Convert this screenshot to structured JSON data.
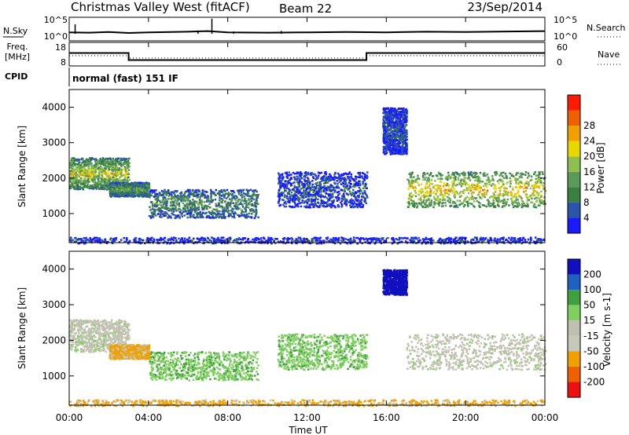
{
  "header": {
    "station": "Christmas Valley West (fitACF)",
    "beam": "Beam 22",
    "date": "23/Sep/2014"
  },
  "summary_panels": {
    "nsky_label": "N.Sky",
    "nsky_ticks": [
      "10^5",
      "10^0"
    ],
    "nsearch_label": "N.Search",
    "nsearch_ticks": [
      "10^5",
      "10^0"
    ],
    "freq_label": "Freq.",
    "freq_unit": "[MHz]",
    "freq_ticks": [
      "18",
      "8"
    ],
    "nave_label": "Nave",
    "nave_ticks": [
      "60",
      "0"
    ],
    "cpid_label": "CPID",
    "cpid_text": "normal (fast) 151 IF"
  },
  "x_axis": {
    "label": "Time UT",
    "ticks": [
      "00:00",
      "04:00",
      "08:00",
      "12:00",
      "16:00",
      "20:00",
      "00:00"
    ]
  },
  "colors": {
    "power": [
      "#1a1aff",
      "#2a55aa",
      "#3a8040",
      "#5a9a5a",
      "#8ec050",
      "#e8d800",
      "#f0a000",
      "#f06000",
      "#ff1a00"
    ],
    "velocity": [
      "#ee1010",
      "#f06000",
      "#f0a000",
      "#c8c8b8",
      "#c0c0b0",
      "#80d060",
      "#40a040",
      "#2060c0",
      "#1010c0"
    ]
  },
  "chart_data": [
    {
      "type": "line",
      "title": "N.Sky / N.Search",
      "x": [
        0,
        1,
        2,
        3,
        4,
        6,
        7,
        8,
        10,
        12,
        14,
        16,
        18,
        20,
        24
      ],
      "series": [
        {
          "name": "N.Sky",
          "values": [
            1.0,
            0.95,
            1.05,
            0.9,
            1.0,
            1.1,
            1.2,
            1.0,
            0.95,
            1.0,
            1.05,
            1.0,
            1.1,
            1.05,
            1.2
          ]
        }
      ],
      "ylim": [
        0,
        5
      ]
    },
    {
      "type": "line",
      "title": "Freq. / Nave",
      "x": [
        0,
        3,
        3.0,
        15,
        15.0,
        24
      ],
      "series": [
        {
          "name": "Freq.",
          "values": [
            13.5,
            13.5,
            10.5,
            10.5,
            13.5,
            13.5
          ]
        },
        {
          "name": "Nave",
          "values": [
            26,
            26,
            20,
            20,
            26,
            26
          ]
        }
      ],
      "ylim": [
        8,
        18
      ]
    },
    {
      "type": "heatmap",
      "title": "Power",
      "xlabel": "Time UT",
      "ylabel": "Slant Range [km]",
      "xlim": [
        0,
        24
      ],
      "ylim": [
        180,
        4500
      ],
      "y_ticks": [
        1000,
        2000,
        3000,
        4000
      ],
      "colorbar": {
        "label": "Power [dB]",
        "ticks": [
          "4",
          "8",
          "12",
          "16",
          "20",
          "24",
          "28"
        ]
      },
      "regions": [
        {
          "t0": 0.0,
          "t1": 3.0,
          "r0": 1700,
          "r1": 2600,
          "value": 20
        },
        {
          "t0": 2.0,
          "t1": 4.0,
          "r0": 1500,
          "r1": 1900,
          "value": 14
        },
        {
          "t0": 4.0,
          "t1": 9.5,
          "r0": 900,
          "r1": 1700,
          "value": 12
        },
        {
          "t0": 10.5,
          "t1": 15.0,
          "r0": 1200,
          "r1": 2200,
          "value": 6
        },
        {
          "t0": 15.8,
          "t1": 17.0,
          "r0": 2700,
          "r1": 4000,
          "value": 6
        },
        {
          "t0": 17.0,
          "t1": 24.0,
          "r0": 1200,
          "r1": 2200,
          "value": 24
        },
        {
          "t0": 0.0,
          "t1": 24.0,
          "r0": 180,
          "r1": 350,
          "value": 4
        }
      ]
    },
    {
      "type": "heatmap",
      "title": "Velocity",
      "xlabel": "Time UT",
      "ylabel": "Slant Range [km]",
      "xlim": [
        0,
        24
      ],
      "ylim": [
        180,
        4500
      ],
      "y_ticks": [
        1000,
        2000,
        3000,
        4000
      ],
      "colorbar": {
        "label": "Velocity [m s-1]",
        "ticks": [
          "200",
          "100",
          "50",
          "15",
          "-15",
          "-50",
          "-100",
          "-200"
        ]
      },
      "regions": [
        {
          "t0": 0.0,
          "t1": 3.0,
          "r0": 1700,
          "r1": 2600,
          "value": 0
        },
        {
          "t0": 2.0,
          "t1": 4.0,
          "r0": 1500,
          "r1": 1900,
          "value": -60
        },
        {
          "t0": 4.0,
          "t1": 9.5,
          "r0": 900,
          "r1": 1700,
          "value": 40
        },
        {
          "t0": 10.5,
          "t1": 15.0,
          "r0": 1200,
          "r1": 2200,
          "value": 40
        },
        {
          "t0": 15.8,
          "t1": 17.0,
          "r0": 3300,
          "r1": 4000,
          "value": 220
        },
        {
          "t0": 17.0,
          "t1": 24.0,
          "r0": 1200,
          "r1": 2200,
          "value": 0
        },
        {
          "t0": 0.0,
          "t1": 24.0,
          "r0": 180,
          "r1": 350,
          "value": -60
        }
      ]
    }
  ]
}
